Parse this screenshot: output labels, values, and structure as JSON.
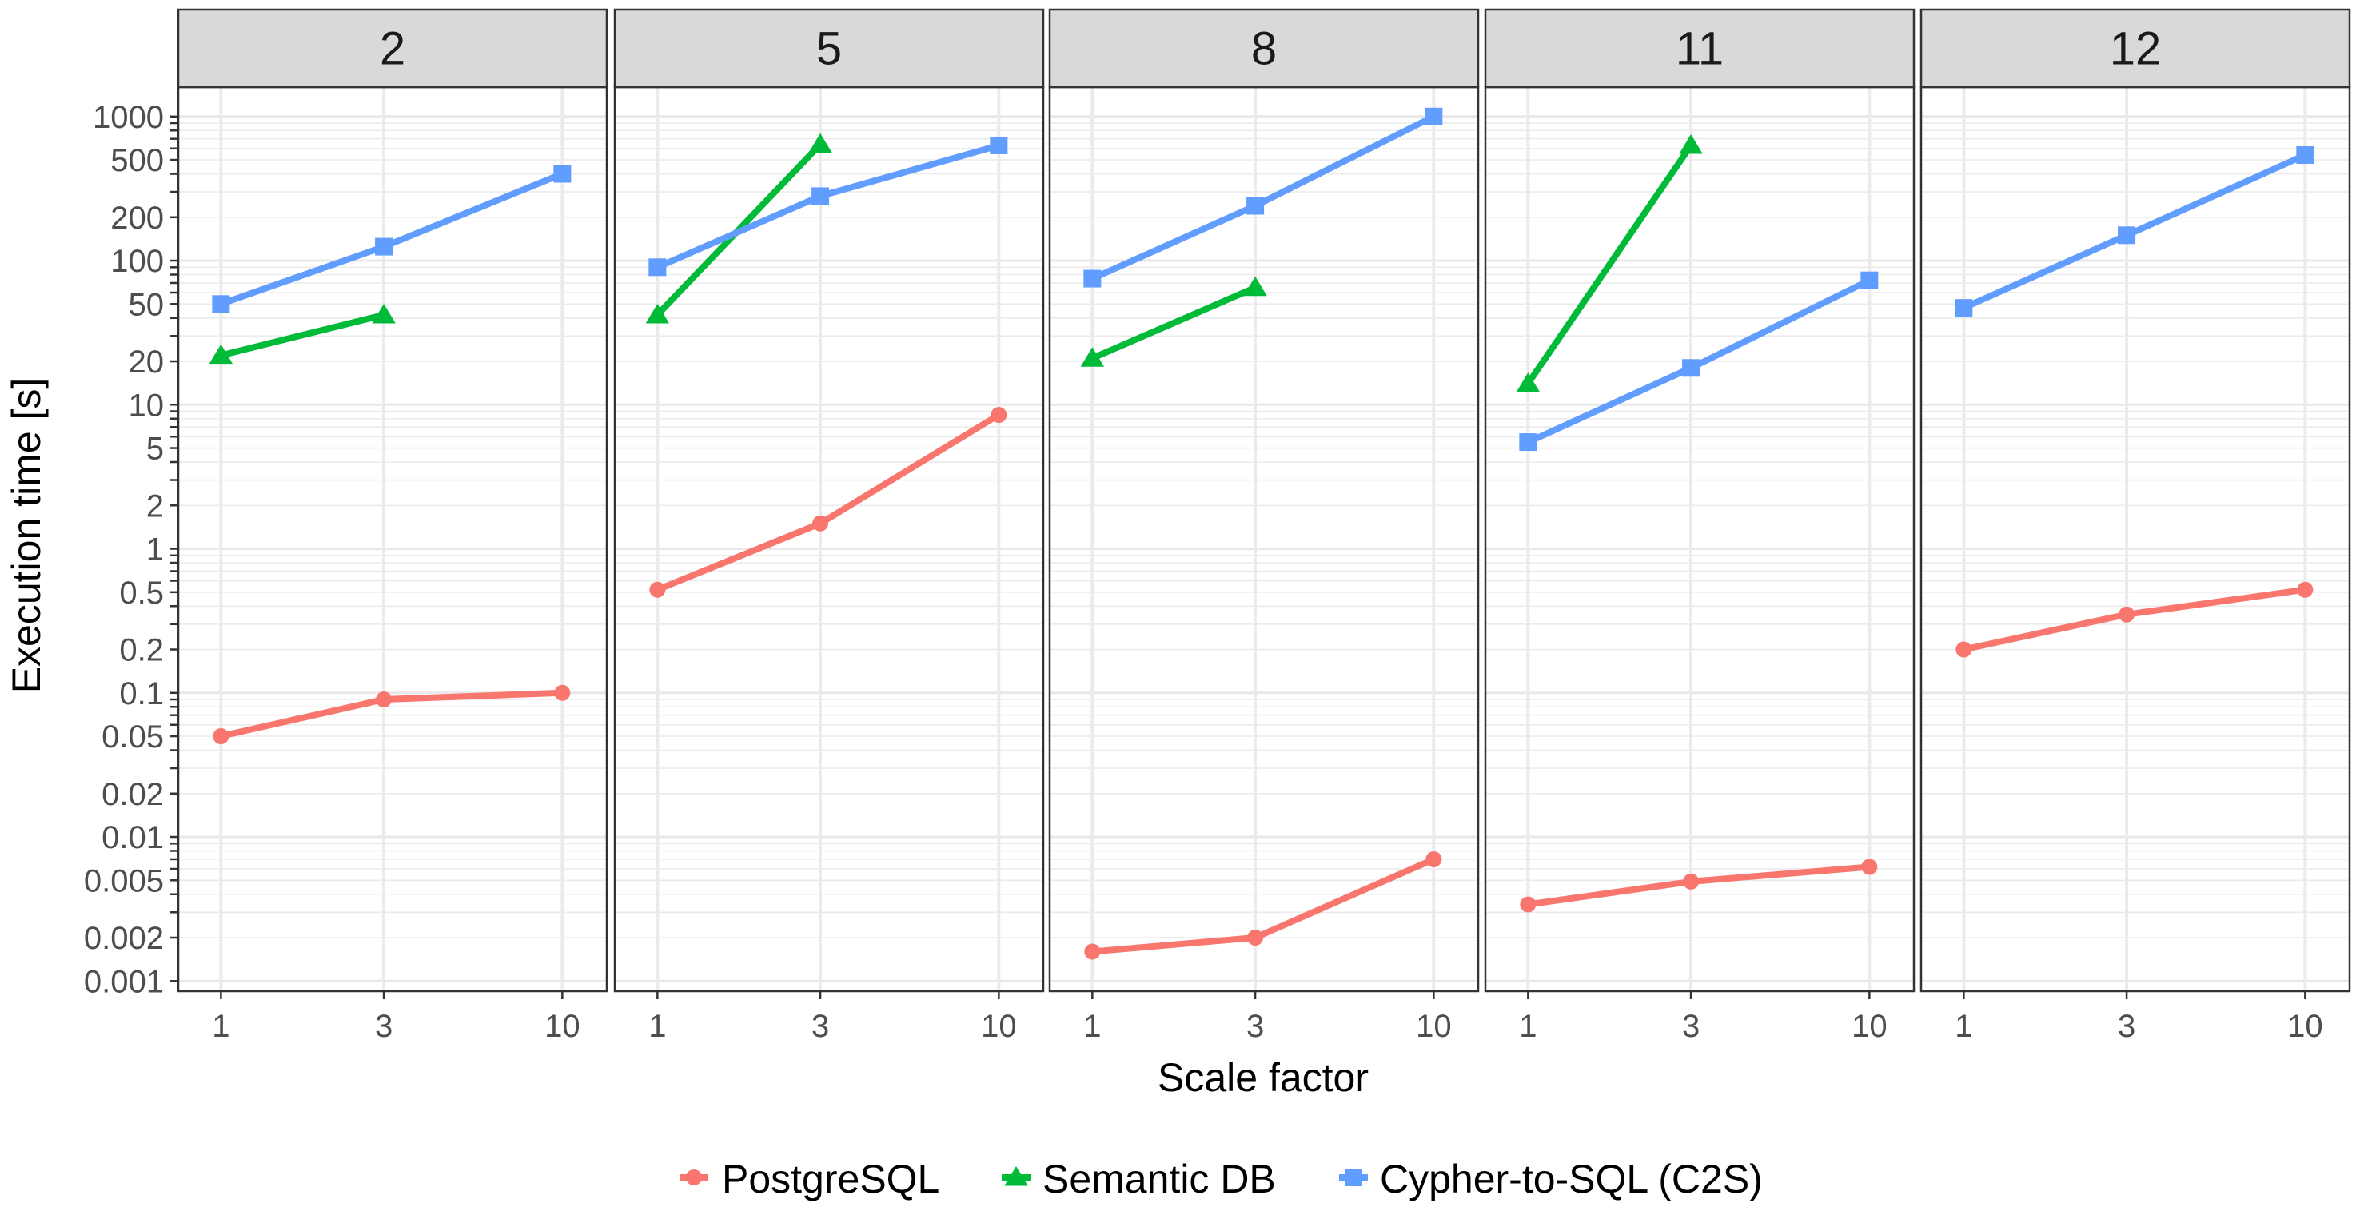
{
  "chart_data": {
    "type": "line",
    "xlabel": "Scale factor",
    "ylabel": "Execution time [s]",
    "x_scale": "log",
    "y_scale": "log",
    "x_ticks": [
      1,
      3,
      10
    ],
    "y_ticks": [
      0.001,
      0.002,
      0.005,
      0.01,
      0.02,
      0.05,
      0.1,
      0.2,
      0.5,
      1,
      2,
      5,
      10,
      20,
      50,
      100,
      200,
      500,
      1000
    ],
    "y_tick_labels": [
      "0.001",
      "0.002",
      "0.005",
      "0.01",
      "0.02",
      "0.05",
      "0.1",
      "0.2",
      "0.5",
      "1",
      "2",
      "5",
      "10",
      "20",
      "50",
      "100",
      "200",
      "500",
      "1000"
    ],
    "x_tick_labels": [
      "1",
      "3",
      "10"
    ],
    "xlim": [
      0.75,
      13.5
    ],
    "ylim": [
      0.00085,
      1600
    ],
    "grid": true,
    "legend_position": "bottom",
    "series_styles": [
      {
        "name": "PostgreSQL",
        "color": "#F8766D",
        "marker": "circle"
      },
      {
        "name": "Semantic DB",
        "color": "#00BA38",
        "marker": "triangle"
      },
      {
        "name": "Cypher-to-SQL (C2S)",
        "color": "#619CFF",
        "marker": "square"
      }
    ],
    "panels": [
      {
        "label": "2",
        "series": [
          {
            "name": "PostgreSQL",
            "x": [
              1,
              3,
              10
            ],
            "y": [
              0.05,
              0.09,
              0.1
            ]
          },
          {
            "name": "Semantic DB",
            "x": [
              1,
              3
            ],
            "y": [
              22,
              42
            ]
          },
          {
            "name": "Cypher-to-SQL (C2S)",
            "x": [
              1,
              3,
              10
            ],
            "y": [
              50,
              125,
              400
            ]
          }
        ]
      },
      {
        "label": "5",
        "series": [
          {
            "name": "PostgreSQL",
            "x": [
              1,
              3,
              10
            ],
            "y": [
              0.52,
              1.5,
              8.5
            ]
          },
          {
            "name": "Semantic DB",
            "x": [
              1,
              3
            ],
            "y": [
              42,
              640
            ]
          },
          {
            "name": "Cypher-to-SQL (C2S)",
            "x": [
              1,
              3,
              10
            ],
            "y": [
              90,
              280,
              630
            ]
          }
        ]
      },
      {
        "label": "8",
        "series": [
          {
            "name": "PostgreSQL",
            "x": [
              1,
              3,
              10
            ],
            "y": [
              0.0016,
              0.002,
              0.007
            ]
          },
          {
            "name": "Semantic DB",
            "x": [
              1,
              3
            ],
            "y": [
              21,
              65
            ]
          },
          {
            "name": "Cypher-to-SQL (C2S)",
            "x": [
              1,
              3,
              10
            ],
            "y": [
              75,
              240,
              1000
            ]
          }
        ]
      },
      {
        "label": "11",
        "series": [
          {
            "name": "PostgreSQL",
            "x": [
              1,
              3,
              10
            ],
            "y": [
              0.0034,
              0.0049,
              0.0062
            ]
          },
          {
            "name": "Semantic DB",
            "x": [
              1,
              3
            ],
            "y": [
              14,
              630
            ]
          },
          {
            "name": "Cypher-to-SQL (C2S)",
            "x": [
              1,
              3,
              10
            ],
            "y": [
              5.5,
              18,
              73
            ]
          }
        ]
      },
      {
        "label": "12",
        "series": [
          {
            "name": "PostgreSQL",
            "x": [
              1,
              3,
              10
            ],
            "y": [
              0.2,
              0.35,
              0.52
            ]
          },
          {
            "name": "Cypher-to-SQL (C2S)",
            "x": [
              1,
              3,
              10
            ],
            "y": [
              47,
              150,
              540
            ]
          }
        ]
      }
    ]
  }
}
